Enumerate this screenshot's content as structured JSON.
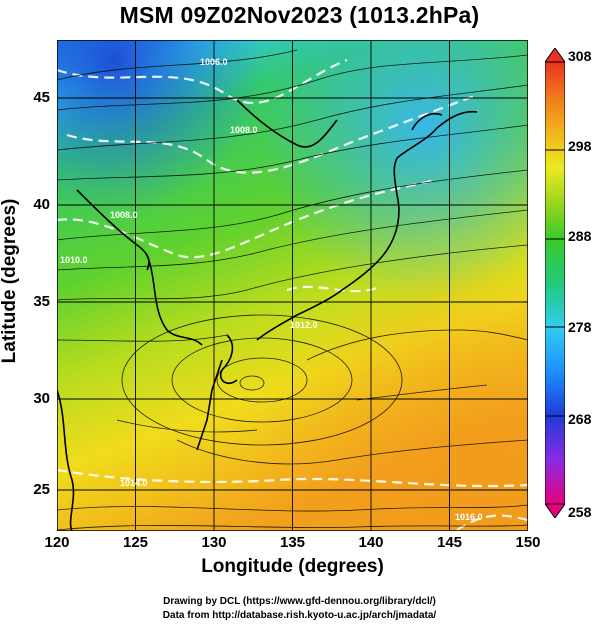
{
  "title": "MSM 09Z02Nov2023 (1013.2hPa)",
  "axes": {
    "xlabel": "Longitude (degrees)",
    "ylabel": "Latitude  (degrees)",
    "xticks": [
      "120",
      "125",
      "130",
      "135",
      "140",
      "145",
      "150"
    ],
    "yticks": [
      "45",
      "40",
      "35",
      "30",
      "25"
    ],
    "xlim": [
      120,
      150
    ],
    "ylim": [
      22.4,
      47.6
    ]
  },
  "colorbar": {
    "ticks": [
      "308",
      "298",
      "288",
      "278",
      "268",
      "258"
    ],
    "range": [
      258,
      308
    ],
    "colors": [
      "#e6007e",
      "#8a2be2",
      "#1e3cd8",
      "#1e90ff",
      "#33ccee",
      "#22c97a",
      "#3ac92a",
      "#9ad51e",
      "#eaea22",
      "#f2b41c",
      "#f27a1c",
      "#e83222"
    ]
  },
  "credits": {
    "line1": "Drawing by DCL (https://www.gfd-dennou.org/library/dcl/)",
    "line2": "Data from http://database.rish.kyoto-u.ac.jp/arch/jmadata/"
  },
  "contour_labels": [
    "1006.0",
    "1008.0",
    "1008.0",
    "1010.0",
    "1012.0",
    "1014.0",
    "1016.0"
  ]
}
